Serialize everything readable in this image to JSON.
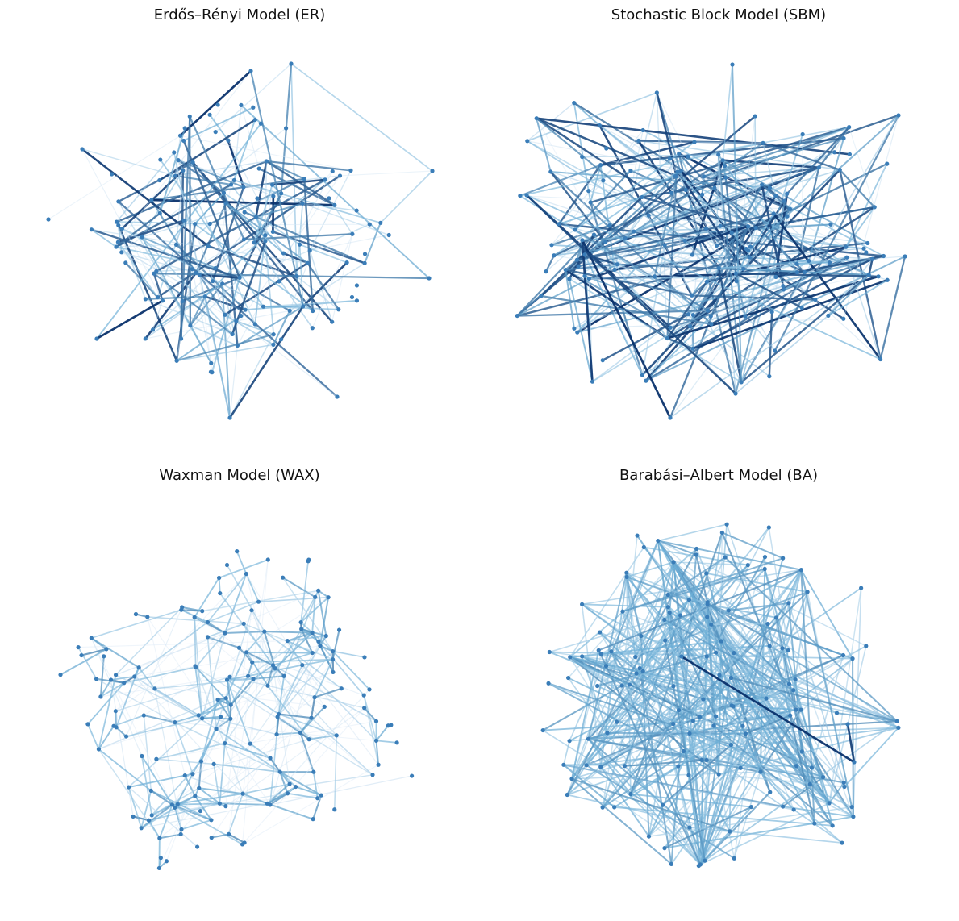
{
  "panels": [
    {
      "title": "Erdős–Rényi Model (ER)",
      "model": "ER"
    },
    {
      "title": "Stochastic Block Model (SBM)",
      "model": "SBM"
    },
    {
      "title": "Waxman Model (WAX)",
      "model": "WAX"
    },
    {
      "title": "Barabási–Albert Model (BA)",
      "model": "BA"
    }
  ],
  "colors": {
    "node": "#3a7db8",
    "edge_light": "#dbe9f6",
    "edge_mid": "#6baed6",
    "edge_dark": "#08306b",
    "background": "#ffffff",
    "title": "#111111"
  }
}
